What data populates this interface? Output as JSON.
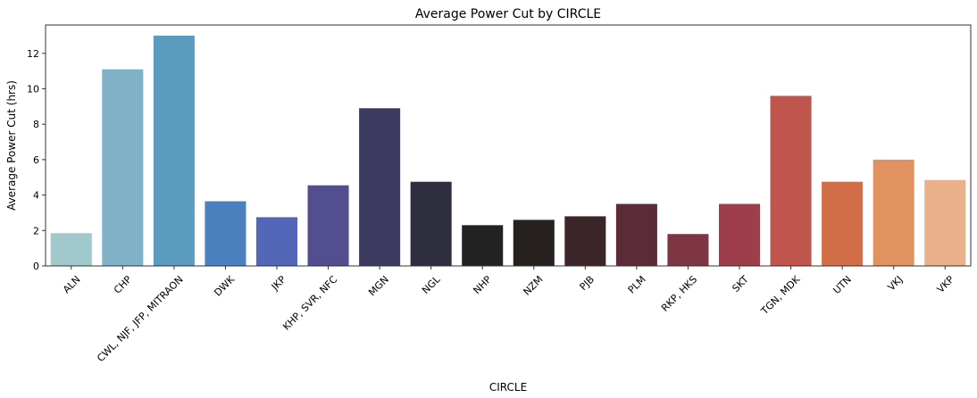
{
  "chart_data": {
    "type": "bar",
    "title": "Average Power Cut by CIRCLE",
    "xlabel": "CIRCLE",
    "ylabel": "Average Power Cut (hrs)",
    "ylim": [
      0,
      13.6
    ],
    "yticks": [
      0,
      2,
      4,
      6,
      8,
      10,
      12
    ],
    "grid": false,
    "categories": [
      "ALN",
      "CHP",
      "CWL, NJF, JFP, MITRAON",
      "DWK",
      "JKP",
      "KHP, SVR, NFC",
      "MGN",
      "NGL",
      "NHP",
      "NZM",
      "PJB",
      "PLM",
      "RKP, HKS",
      "SKT",
      "TGN, MDK",
      "UTN",
      "VKJ",
      "VKP"
    ],
    "values": [
      1.85,
      11.1,
      13.0,
      3.65,
      2.75,
      4.55,
      8.9,
      4.75,
      2.3,
      2.6,
      2.8,
      3.5,
      1.8,
      3.5,
      9.6,
      4.75,
      6.0,
      4.85
    ],
    "colors": [
      "#a1c8cd",
      "#7fb2c6",
      "#5c9bc0",
      "#4b80bf",
      "#5466b7",
      "#534f8f",
      "#3c3a5f",
      "#2e2d3d",
      "#222222",
      "#26201f",
      "#3b2529",
      "#5b2c38",
      "#7e3644",
      "#9e3e4a",
      "#bf554c",
      "#d16e48",
      "#e0925f",
      "#e9b18a"
    ]
  }
}
